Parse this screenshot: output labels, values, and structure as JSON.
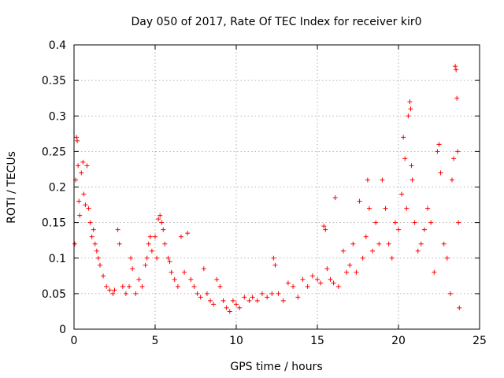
{
  "chart_data": {
    "type": "scatter",
    "title": "Day 050 of 2017, Rate Of TEC Index for receiver kir0",
    "xlabel": "GPS time / hours",
    "ylabel": "ROTI / TECUs",
    "xlim": [
      0,
      25
    ],
    "ylim": [
      0,
      0.4
    ],
    "xticks": [
      0,
      5,
      10,
      15,
      20,
      25
    ],
    "xtick_labels": [
      "0",
      "5",
      "10",
      "15",
      "20",
      "25"
    ],
    "yticks": [
      0,
      0.05,
      0.1,
      0.15,
      0.2,
      0.25,
      0.3,
      0.35,
      0.4
    ],
    "ytick_labels": [
      "0",
      "0.05",
      "0.1",
      "0.15",
      "0.2",
      "0.25",
      "0.3",
      "0.35",
      "0.4"
    ],
    "grid": true,
    "marker": "+",
    "color": "#ff0000",
    "series": [
      {
        "name": "ROTI",
        "points": [
          [
            0.05,
            0.12
          ],
          [
            0.1,
            0.21
          ],
          [
            0.15,
            0.27
          ],
          [
            0.2,
            0.265
          ],
          [
            0.25,
            0.23
          ],
          [
            0.3,
            0.18
          ],
          [
            0.35,
            0.16
          ],
          [
            0.45,
            0.22
          ],
          [
            0.55,
            0.235
          ],
          [
            0.6,
            0.19
          ],
          [
            0.7,
            0.175
          ],
          [
            0.8,
            0.23
          ],
          [
            0.9,
            0.17
          ],
          [
            1.0,
            0.15
          ],
          [
            1.1,
            0.13
          ],
          [
            1.2,
            0.14
          ],
          [
            1.3,
            0.12
          ],
          [
            1.4,
            0.11
          ],
          [
            1.5,
            0.1
          ],
          [
            1.6,
            0.09
          ],
          [
            1.8,
            0.075
          ],
          [
            2.0,
            0.06
          ],
          [
            2.2,
            0.055
          ],
          [
            2.4,
            0.05
          ],
          [
            2.5,
            0.055
          ],
          [
            2.7,
            0.14
          ],
          [
            2.8,
            0.12
          ],
          [
            3.0,
            0.06
          ],
          [
            3.2,
            0.05
          ],
          [
            3.4,
            0.06
          ],
          [
            3.5,
            0.1
          ],
          [
            3.6,
            0.085
          ],
          [
            3.8,
            0.05
          ],
          [
            4.0,
            0.07
          ],
          [
            4.2,
            0.06
          ],
          [
            4.4,
            0.09
          ],
          [
            4.5,
            0.1
          ],
          [
            4.6,
            0.12
          ],
          [
            4.7,
            0.13
          ],
          [
            4.8,
            0.11
          ],
          [
            5.0,
            0.13
          ],
          [
            5.1,
            0.1
          ],
          [
            5.2,
            0.155
          ],
          [
            5.3,
            0.16
          ],
          [
            5.4,
            0.15
          ],
          [
            5.5,
            0.14
          ],
          [
            5.6,
            0.12
          ],
          [
            5.8,
            0.1
          ],
          [
            5.9,
            0.095
          ],
          [
            6.0,
            0.08
          ],
          [
            6.2,
            0.07
          ],
          [
            6.4,
            0.06
          ],
          [
            6.6,
            0.13
          ],
          [
            6.8,
            0.08
          ],
          [
            7.0,
            0.135
          ],
          [
            7.2,
            0.07
          ],
          [
            7.4,
            0.06
          ],
          [
            7.6,
            0.05
          ],
          [
            7.8,
            0.045
          ],
          [
            8.0,
            0.085
          ],
          [
            8.2,
            0.05
          ],
          [
            8.4,
            0.04
          ],
          [
            8.6,
            0.035
          ],
          [
            8.8,
            0.07
          ],
          [
            9.0,
            0.06
          ],
          [
            9.2,
            0.04
          ],
          [
            9.4,
            0.03
          ],
          [
            9.6,
            0.025
          ],
          [
            9.8,
            0.04
          ],
          [
            10.0,
            0.035
          ],
          [
            10.2,
            0.03
          ],
          [
            10.5,
            0.045
          ],
          [
            10.8,
            0.04
          ],
          [
            11.0,
            0.045
          ],
          [
            11.3,
            0.04
          ],
          [
            11.6,
            0.05
          ],
          [
            11.9,
            0.045
          ],
          [
            12.2,
            0.05
          ],
          [
            12.3,
            0.1
          ],
          [
            12.4,
            0.09
          ],
          [
            12.6,
            0.05
          ],
          [
            12.9,
            0.04
          ],
          [
            13.2,
            0.065
          ],
          [
            13.5,
            0.06
          ],
          [
            13.8,
            0.045
          ],
          [
            14.1,
            0.07
          ],
          [
            14.4,
            0.06
          ],
          [
            14.7,
            0.075
          ],
          [
            15.0,
            0.07
          ],
          [
            15.2,
            0.065
          ],
          [
            15.4,
            0.145
          ],
          [
            15.5,
            0.14
          ],
          [
            15.6,
            0.085
          ],
          [
            15.8,
            0.07
          ],
          [
            16.0,
            0.065
          ],
          [
            16.1,
            0.185
          ],
          [
            16.3,
            0.06
          ],
          [
            16.6,
            0.11
          ],
          [
            16.8,
            0.08
          ],
          [
            17.0,
            0.09
          ],
          [
            17.2,
            0.12
          ],
          [
            17.4,
            0.08
          ],
          [
            17.6,
            0.18
          ],
          [
            17.8,
            0.1
          ],
          [
            18.0,
            0.13
          ],
          [
            18.1,
            0.21
          ],
          [
            18.2,
            0.17
          ],
          [
            18.4,
            0.11
          ],
          [
            18.6,
            0.15
          ],
          [
            18.8,
            0.12
          ],
          [
            19.0,
            0.21
          ],
          [
            19.2,
            0.17
          ],
          [
            19.4,
            0.12
          ],
          [
            19.6,
            0.1
          ],
          [
            19.8,
            0.15
          ],
          [
            20.0,
            0.14
          ],
          [
            20.2,
            0.19
          ],
          [
            20.3,
            0.27
          ],
          [
            20.4,
            0.24
          ],
          [
            20.5,
            0.17
          ],
          [
            20.6,
            0.3
          ],
          [
            20.7,
            0.32
          ],
          [
            20.75,
            0.31
          ],
          [
            20.8,
            0.23
          ],
          [
            20.85,
            0.21
          ],
          [
            21.0,
            0.15
          ],
          [
            21.2,
            0.11
          ],
          [
            21.4,
            0.12
          ],
          [
            21.6,
            0.14
          ],
          [
            21.8,
            0.17
          ],
          [
            22.0,
            0.15
          ],
          [
            22.2,
            0.08
          ],
          [
            22.4,
            0.25
          ],
          [
            22.5,
            0.26
          ],
          [
            22.6,
            0.22
          ],
          [
            22.8,
            0.12
          ],
          [
            23.0,
            0.1
          ],
          [
            23.2,
            0.05
          ],
          [
            23.3,
            0.21
          ],
          [
            23.4,
            0.24
          ],
          [
            23.5,
            0.37
          ],
          [
            23.55,
            0.365
          ],
          [
            23.6,
            0.325
          ],
          [
            23.65,
            0.25
          ],
          [
            23.7,
            0.15
          ],
          [
            23.75,
            0.03
          ]
        ]
      }
    ]
  }
}
